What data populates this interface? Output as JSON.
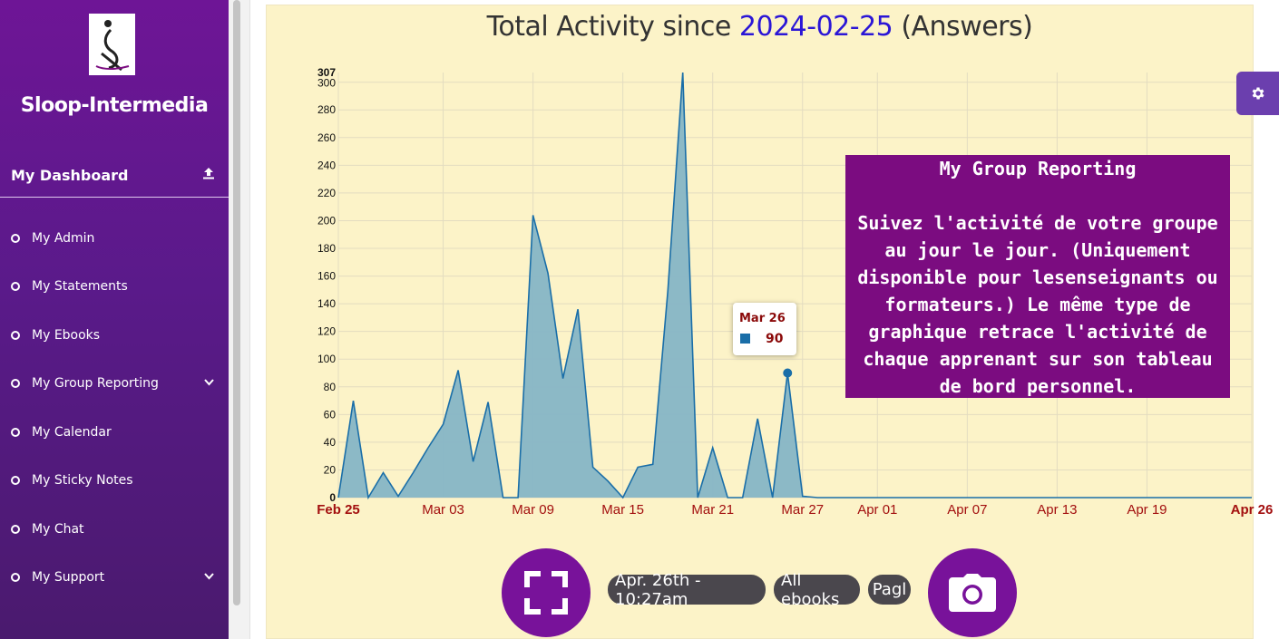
{
  "sidebar": {
    "brand": "Sloop-Intermedia",
    "dashboard_label": "My Dashboard",
    "items": [
      {
        "label": "My Admin"
      },
      {
        "label": "My Statements"
      },
      {
        "label": "My Ebooks"
      },
      {
        "label": "My Group Reporting"
      },
      {
        "label": "My Calendar"
      },
      {
        "label": "My Sticky Notes"
      },
      {
        "label": "My Chat"
      },
      {
        "label": "My Support"
      }
    ]
  },
  "header": {
    "title_prefix": "Total Activity since ",
    "title_date": "2024-02-25",
    "title_suffix": " (Answers)"
  },
  "tooltip": {
    "date": "Mar 26",
    "value": "90"
  },
  "info": {
    "title": "My Group Reporting",
    "text": "Suivez l'activité de votre groupe au jour le jour. (Uniquement disponible pour lesenseignants ou formateurs.) Le même type de graphique retrace l'activité de chaque apprenant sur son tableau de bord personnel."
  },
  "toolbar": {
    "time_label": "Apr. 26th - 10:27am",
    "filter_label": "All ebooks",
    "pag_label": "Pagl"
  },
  "colors": {
    "area_fill": "#86b5c6",
    "line": "#1a6ea8",
    "panel_bg": "#fcf3c8",
    "accent": "#78129a",
    "info_bg": "#7b0c80"
  },
  "icons": {
    "dashboard": "upload-icon",
    "gear": "gear-icon",
    "fullscreen": "expand-icon",
    "camera": "camera-icon"
  },
  "chart_data": {
    "type": "area",
    "start_date": "2024-02-25",
    "ylim": [
      0,
      307
    ],
    "yticks": [
      0,
      20,
      40,
      60,
      80,
      100,
      120,
      140,
      160,
      180,
      200,
      220,
      240,
      260,
      280,
      300,
      307
    ],
    "xtick_labels": [
      "Feb 25",
      "Mar 03",
      "Mar 09",
      "Mar 15",
      "Mar 21",
      "Mar 27",
      "Apr 01",
      "Apr 07",
      "Apr 13",
      "Apr 19",
      "Apr 26"
    ],
    "xtick_dates": [
      "2024-02-25",
      "2024-03-03",
      "2024-03-09",
      "2024-03-15",
      "2024-03-21",
      "2024-03-27",
      "2024-04-01",
      "2024-04-07",
      "2024-04-13",
      "2024-04-19",
      "2024-04-26"
    ],
    "xtick_bold": [
      true,
      false,
      false,
      false,
      false,
      false,
      false,
      false,
      false,
      false,
      true
    ],
    "series": [
      {
        "values": [
          {
            "date": "2024-02-25",
            "y": 0
          },
          {
            "date": "2024-02-26",
            "y": 70
          },
          {
            "date": "2024-02-27",
            "y": 0
          },
          {
            "date": "2024-02-28",
            "y": 18
          },
          {
            "date": "2024-02-29",
            "y": 1
          },
          {
            "date": "2024-03-01",
            "y": 18
          },
          {
            "date": "2024-03-02",
            "y": 36
          },
          {
            "date": "2024-03-03",
            "y": 53
          },
          {
            "date": "2024-03-04",
            "y": 92
          },
          {
            "date": "2024-03-05",
            "y": 26
          },
          {
            "date": "2024-03-06",
            "y": 69
          },
          {
            "date": "2024-03-07",
            "y": 0
          },
          {
            "date": "2024-03-08",
            "y": 0
          },
          {
            "date": "2024-03-09",
            "y": 204
          },
          {
            "date": "2024-03-10",
            "y": 162
          },
          {
            "date": "2024-03-11",
            "y": 86
          },
          {
            "date": "2024-03-12",
            "y": 136
          },
          {
            "date": "2024-03-13",
            "y": 22
          },
          {
            "date": "2024-03-14",
            "y": 12
          },
          {
            "date": "2024-03-15",
            "y": 0
          },
          {
            "date": "2024-03-16",
            "y": 22
          },
          {
            "date": "2024-03-17",
            "y": 24
          },
          {
            "date": "2024-03-18",
            "y": 149
          },
          {
            "date": "2024-03-19",
            "y": 307
          },
          {
            "date": "2024-03-20",
            "y": 0
          },
          {
            "date": "2024-03-21",
            "y": 36
          },
          {
            "date": "2024-03-22",
            "y": 0
          },
          {
            "date": "2024-03-23",
            "y": 0
          },
          {
            "date": "2024-03-24",
            "y": 57
          },
          {
            "date": "2024-03-25",
            "y": 0
          },
          {
            "date": "2024-03-26",
            "y": 90
          },
          {
            "date": "2024-03-27",
            "y": 1
          },
          {
            "date": "2024-03-28",
            "y": 0
          },
          {
            "date": "2024-04-26",
            "y": 0
          }
        ]
      }
    ],
    "highlight": {
      "date": "2024-03-26",
      "y": 90
    },
    "grid": true,
    "legend": "none"
  }
}
